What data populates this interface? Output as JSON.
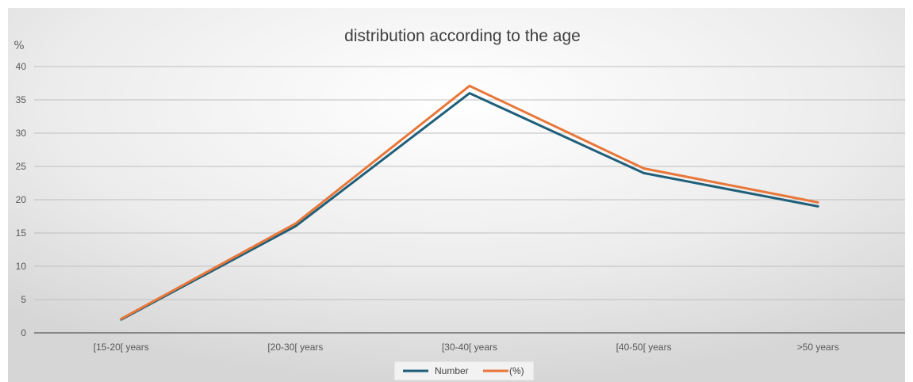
{
  "chart_data": {
    "type": "line",
    "title": "distribution according to the age",
    "ylabel": "%",
    "xlabel": "",
    "categories": [
      "[15-20[ years",
      "[20-30[ years",
      "[30-40[ years",
      "[40-50[ years",
      ">50 years"
    ],
    "ylim": [
      0,
      40
    ],
    "yticks": [
      "0",
      "5",
      "10",
      "15",
      "20",
      "25",
      "30",
      "35",
      "40"
    ],
    "grid": true,
    "legend_position": "bottom",
    "series": [
      {
        "name": "Number",
        "values": [
          2,
          16,
          36,
          24,
          19
        ],
        "color": "#1f5f7a"
      },
      {
        "name": "(%)",
        "values": [
          2.1,
          16.4,
          37.1,
          24.7,
          19.6
        ],
        "color": "#e8773a"
      }
    ]
  }
}
